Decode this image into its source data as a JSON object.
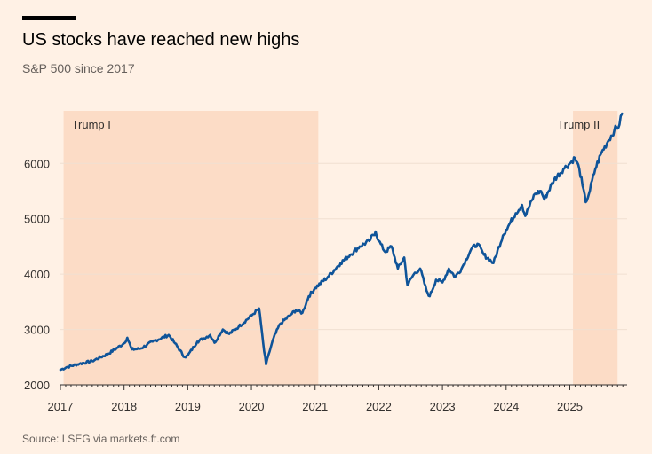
{
  "header": {
    "title": "US stocks have reached new highs",
    "subtitle": "S&P 500 since 2017"
  },
  "footer": {
    "source": "Source: LSEG via markets.ft.com"
  },
  "colors": {
    "background": "#fff1e5",
    "line": "#0f5499",
    "band": "#fcdcc6",
    "grid": "#f0e0d2",
    "axis": "#33302e"
  },
  "chart_data": {
    "type": "line",
    "title": "US stocks have reached new highs",
    "subtitle": "S&P 500 since 2017",
    "xlabel": "",
    "ylabel": "",
    "xlim": [
      2017.0,
      2025.9
    ],
    "ylim": [
      2000,
      6950
    ],
    "yticks": [
      2000,
      3000,
      4000,
      5000,
      6000
    ],
    "xticks": [
      2017,
      2018,
      2019,
      2020,
      2021,
      2022,
      2023,
      2024,
      2025
    ],
    "shaded_periods": [
      {
        "label": "Trump I",
        "start": 2017.05,
        "end": 2021.05
      },
      {
        "label": "Trump II",
        "start": 2025.05,
        "end": 2025.75
      }
    ],
    "series": [
      {
        "name": "S&P 500",
        "x": [
          2017.0,
          2017.1,
          2017.3,
          2017.5,
          2017.75,
          2018.0,
          2018.05,
          2018.12,
          2018.25,
          2018.45,
          2018.7,
          2018.8,
          2018.95,
          2019.0,
          2019.15,
          2019.35,
          2019.42,
          2019.55,
          2019.65,
          2019.8,
          2020.0,
          2020.12,
          2020.15,
          2020.2,
          2020.23,
          2020.27,
          2020.35,
          2020.45,
          2020.6,
          2020.7,
          2020.8,
          2020.9,
          2021.0,
          2021.2,
          2021.4,
          2021.55,
          2021.7,
          2021.85,
          2021.95,
          2022.0,
          2022.1,
          2022.2,
          2022.3,
          2022.4,
          2022.45,
          2022.55,
          2022.65,
          2022.75,
          2022.8,
          2022.9,
          2023.0,
          2023.1,
          2023.2,
          2023.3,
          2023.45,
          2023.55,
          2023.65,
          2023.8,
          2023.95,
          2024.0,
          2024.15,
          2024.25,
          2024.3,
          2024.45,
          2024.55,
          2024.6,
          2024.75,
          2024.9,
          2025.0,
          2025.08,
          2025.15,
          2025.2,
          2025.25,
          2025.3,
          2025.4,
          2025.5,
          2025.6,
          2025.7,
          2025.78,
          2025.82
        ],
        "values": [
          2270,
          2320,
          2380,
          2430,
          2560,
          2750,
          2850,
          2640,
          2650,
          2780,
          2900,
          2750,
          2500,
          2530,
          2780,
          2900,
          2760,
          3000,
          2920,
          3050,
          3250,
          3380,
          3100,
          2600,
          2370,
          2550,
          2850,
          3100,
          3250,
          3350,
          3300,
          3600,
          3750,
          3950,
          4200,
          4350,
          4500,
          4600,
          4770,
          4600,
          4400,
          4500,
          4100,
          4300,
          3800,
          4000,
          4100,
          3700,
          3600,
          3900,
          3850,
          4100,
          3950,
          4100,
          4450,
          4550,
          4350,
          4200,
          4700,
          4800,
          5100,
          5250,
          5050,
          5450,
          5500,
          5350,
          5700,
          5900,
          6000,
          6100,
          5900,
          5600,
          5300,
          5450,
          5900,
          6200,
          6400,
          6600,
          6700,
          6900
        ]
      }
    ]
  }
}
